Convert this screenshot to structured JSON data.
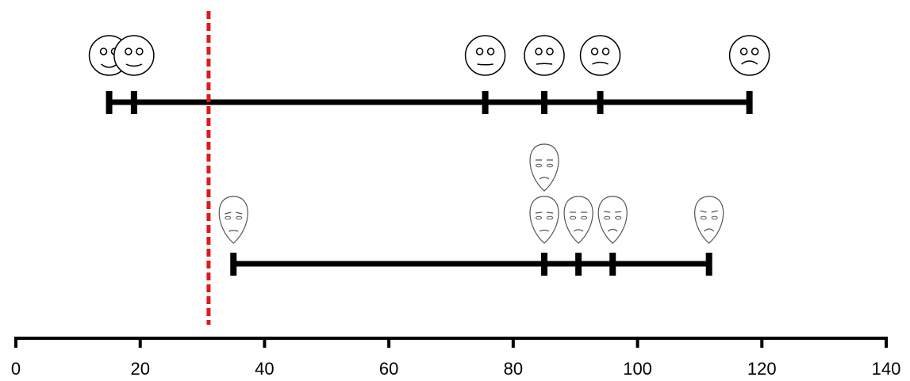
{
  "chart_data": {
    "type": "scale",
    "xlim": [
      0,
      140
    ],
    "xticks": [
      0,
      20,
      40,
      60,
      80,
      100,
      120,
      140
    ],
    "series": [
      {
        "color": "#000000",
        "values": [
          15,
          19,
          75.5,
          85,
          94,
          118
        ]
      },
      {
        "color": "#000000",
        "values": [
          35,
          85,
          90.5,
          96,
          111.5
        ]
      }
    ],
    "threshold": 31,
    "threshold_color": "#e0191b"
  }
}
